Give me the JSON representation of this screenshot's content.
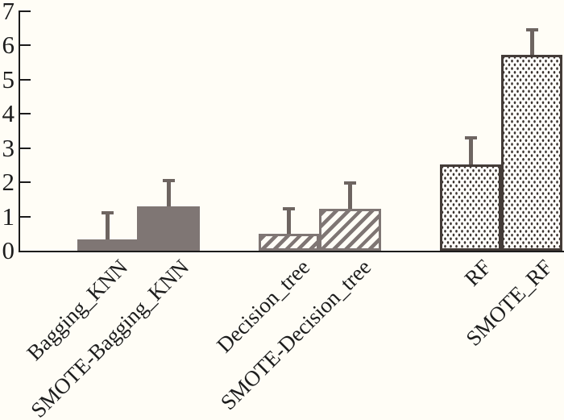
{
  "chart_data": {
    "type": "bar",
    "title": "",
    "xlabel": "",
    "ylabel": "",
    "grid": false,
    "legend": false,
    "categories": [
      "Bagging_KNN",
      "SMOTE-Bagging_KNN",
      "Decision_tree",
      "SMOTE-Decision_tree",
      "RF",
      "SMOTE_RF"
    ],
    "values": [
      0.32,
      1.3,
      0.5,
      1.22,
      2.53,
      5.72
    ],
    "error_bar_tops": [
      1.16,
      2.1,
      1.28,
      2.02,
      3.35,
      6.5
    ],
    "patterns": [
      "solid",
      "solid",
      "hatch",
      "hatch",
      "dots",
      "dots"
    ],
    "y_ticks": [
      "0",
      "1",
      "2",
      "3",
      "4",
      "5",
      "6",
      "7"
    ],
    "ylim": [
      0,
      7
    ],
    "colors": {
      "background": "#fffdf6",
      "axis_and_text": "#1c1c1c",
      "solid_and_hatch_gray": "#7f7674",
      "dotted_bar_border": "#443c38",
      "dot_stipple": "#38312d",
      "error_bar": "#6e6561"
    }
  }
}
